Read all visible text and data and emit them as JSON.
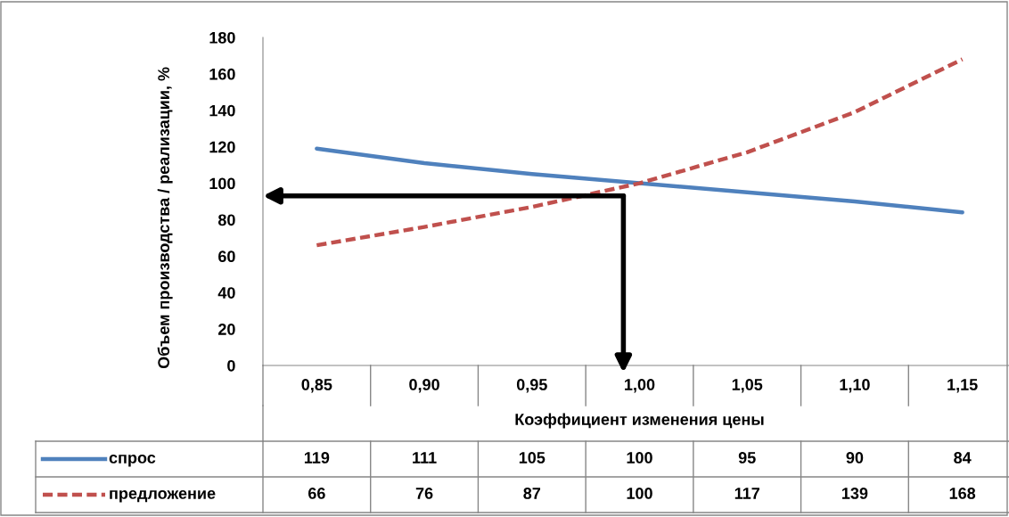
{
  "chart_data": {
    "type": "line",
    "xlabel": "Коэффициент изменения цены",
    "ylabel": "Объем производства / реализации, %",
    "categories": [
      "0,85",
      "0,90",
      "0,95",
      "1,00",
      "1,05",
      "1,10",
      "1,15"
    ],
    "series": [
      {
        "name": "спрос",
        "color": "#4f81bd",
        "line_style": "solid",
        "values": [
          119,
          111,
          105,
          100,
          95,
          90,
          84
        ]
      },
      {
        "name": "предложение",
        "color": "#c0504d",
        "line_style": "dashed",
        "values": [
          66,
          76,
          87,
          100,
          117,
          139,
          168
        ]
      }
    ],
    "ylim": [
      0,
      180
    ],
    "yticks": [
      0,
      20,
      40,
      60,
      80,
      100,
      120,
      140,
      160,
      180
    ],
    "grid": false,
    "data_labels": true,
    "legend": "bottom",
    "marker": "none"
  }
}
